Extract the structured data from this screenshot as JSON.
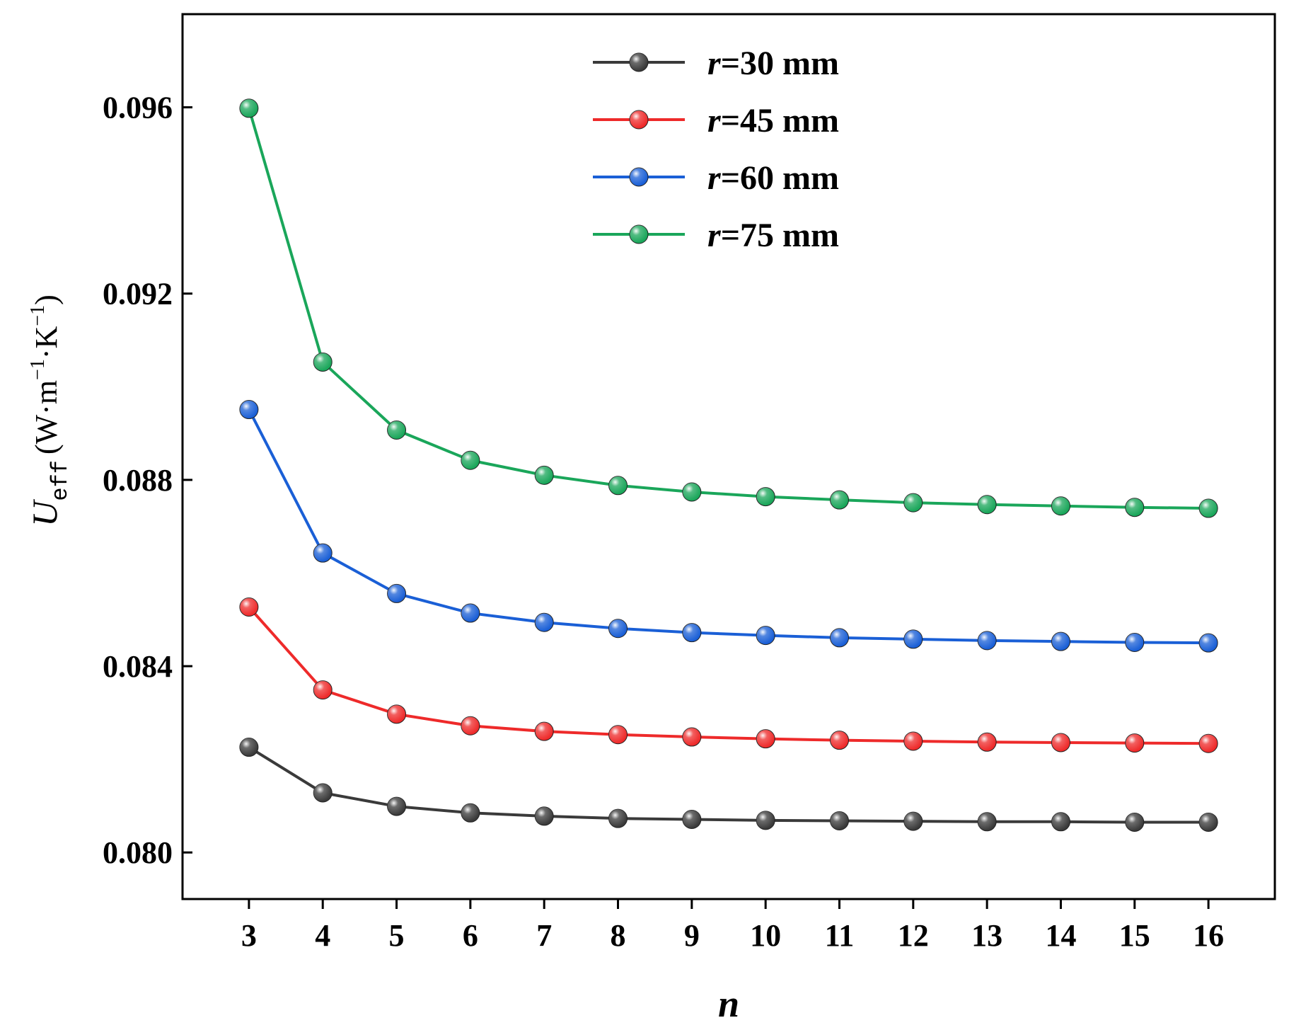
{
  "chart_data": {
    "type": "line",
    "title": "",
    "xlabel": "n",
    "ylabel": {
      "symbol": "U",
      "subscript": "eff",
      "unit_open": "(W·m",
      "exp1": "−1",
      "unit_mid": "·K",
      "exp2": "−1",
      "unit_close": ")"
    },
    "x": [
      3,
      4,
      5,
      6,
      7,
      8,
      9,
      10,
      11,
      12,
      13,
      14,
      15,
      16
    ],
    "xlim": [
      2.1,
      16.9
    ],
    "ylim": [
      0.079,
      0.098
    ],
    "xticks": [
      3,
      4,
      5,
      6,
      7,
      8,
      9,
      10,
      11,
      12,
      13,
      14,
      15,
      16
    ],
    "yticks": [
      0.08,
      0.084,
      0.088,
      0.092,
      0.096
    ],
    "ytick_labels": [
      "0.080",
      "0.084",
      "0.088",
      "0.092",
      "0.096"
    ],
    "legend_position": "top-center",
    "series": [
      {
        "name": "r=30 mm",
        "var": "r",
        "label_rest": "=30 mm",
        "color": "#3a3a3a",
        "values": [
          0.08226,
          0.08128,
          0.08099,
          0.08085,
          0.08078,
          0.08073,
          0.08071,
          0.08069,
          0.08068,
          0.08067,
          0.08066,
          0.08066,
          0.08065,
          0.08065
        ]
      },
      {
        "name": "r=45 mm",
        "var": "r",
        "label_rest": "=45 mm",
        "color": "#ee2a2a",
        "values": [
          0.08527,
          0.08349,
          0.08297,
          0.08272,
          0.0826,
          0.08253,
          0.08248,
          0.08244,
          0.08241,
          0.08239,
          0.08237,
          0.08236,
          0.08235,
          0.08234
        ]
      },
      {
        "name": "r=60 mm",
        "var": "r",
        "label_rest": "=60 mm",
        "color": "#1a5fd6",
        "values": [
          0.08951,
          0.08643,
          0.08556,
          0.08514,
          0.08494,
          0.08481,
          0.08472,
          0.08466,
          0.08461,
          0.08458,
          0.08455,
          0.08453,
          0.08451,
          0.0845
        ]
      },
      {
        "name": "r=75 mm",
        "var": "r",
        "label_rest": "=75 mm",
        "color": "#1aa65a",
        "values": [
          0.09598,
          0.09053,
          0.08907,
          0.08842,
          0.0881,
          0.08788,
          0.08774,
          0.08764,
          0.08757,
          0.08751,
          0.08747,
          0.08744,
          0.08741,
          0.08739
        ]
      }
    ]
  }
}
